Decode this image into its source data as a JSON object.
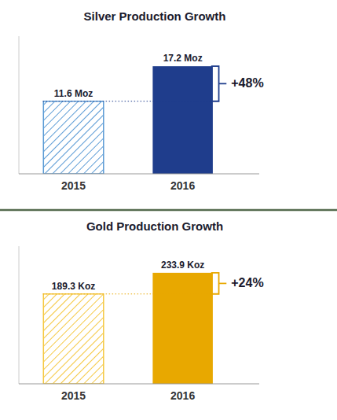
{
  "chart_data": [
    {
      "type": "bar",
      "title": "Silver Production Growth",
      "categories": [
        "2015",
        "2016"
      ],
      "values": [
        11.6,
        17.2
      ],
      "value_labels": [
        "11.6 Moz",
        "17.2 Moz"
      ],
      "data_labels": true,
      "colors": [
        "#5b9bd5",
        "#1f3d8c"
      ],
      "ylim": [
        0,
        22
      ],
      "tick_labels": "x",
      "annotation": "+48%"
    },
    {
      "type": "bar",
      "title": "Gold Production Growth",
      "categories": [
        "2015",
        "2016"
      ],
      "values": [
        189.3,
        233.9
      ],
      "value_labels": [
        "189.3 Koz",
        "233.9 Koz"
      ],
      "data_labels": true,
      "colors": [
        "#f5c842",
        "#e8a800"
      ],
      "ylim": [
        0,
        290
      ],
      "tick_labels": "x",
      "annotation": "+24%"
    }
  ]
}
